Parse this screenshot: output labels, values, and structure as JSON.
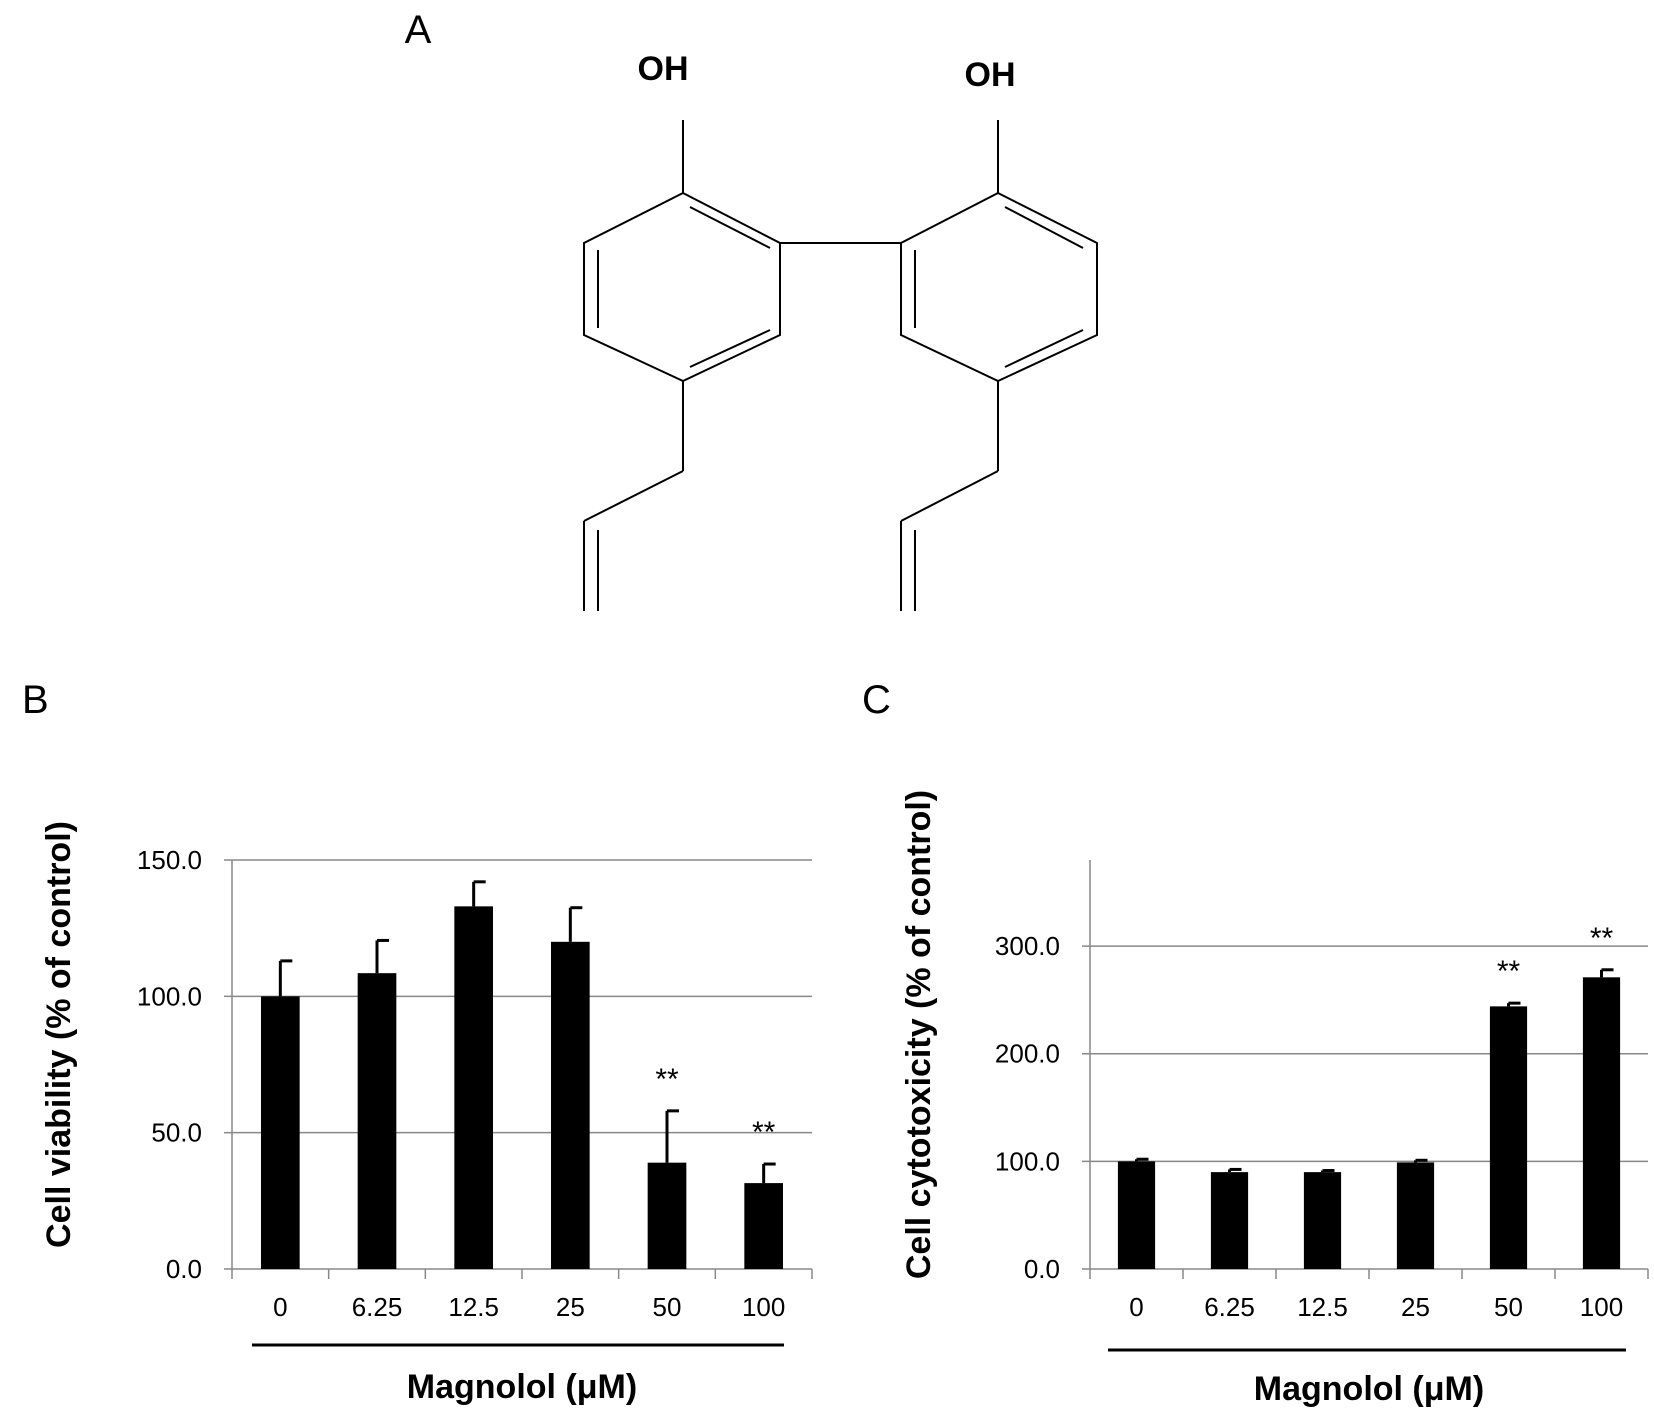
{
  "panels": {
    "a": "A",
    "b": "B",
    "c": "C"
  },
  "structure": {
    "oh_left": "OH",
    "oh_right": "OH"
  },
  "chart_data": [
    {
      "type": "bar",
      "panel": "B",
      "categories": [
        "0",
        "6.25",
        "12.5",
        "25",
        "50",
        "100"
      ],
      "values": [
        100.0,
        108.5,
        133.0,
        120.0,
        39.0,
        31.5
      ],
      "errors": [
        13.0,
        12.0,
        9.0,
        12.5,
        19.0,
        7.0
      ],
      "annotations": [
        "",
        "",
        "",
        "",
        "**",
        "**"
      ],
      "ylabel": "Cell viability (% of control)",
      "xlabel": "Magnolol (μM)",
      "ylim": [
        0,
        150
      ],
      "yticks": [
        "0.0",
        "50.0",
        "100.0",
        "150.0"
      ],
      "ytick_values": [
        0,
        50,
        100,
        150
      ],
      "grid": true,
      "bar_color": "#000000"
    },
    {
      "type": "bar",
      "panel": "C",
      "categories": [
        "0",
        "6.25",
        "12.5",
        "25",
        "50",
        "100"
      ],
      "values": [
        100.0,
        90.0,
        90.0,
        99.0,
        244.0,
        271.0
      ],
      "errors": [
        2.0,
        2.5,
        1.5,
        2.0,
        3.0,
        7.0
      ],
      "annotations": [
        "",
        "",
        "",
        "",
        "**",
        "**"
      ],
      "ylabel": "Cell cytotoxicity (% of control)",
      "xlabel": "Magnolol (μM)",
      "ylim": [
        0,
        380
      ],
      "yticks": [
        "0.0",
        "100.0",
        "200.0",
        "300.0"
      ],
      "ytick_values": [
        0,
        100,
        200,
        300
      ],
      "grid": true,
      "bar_color": "#000000"
    }
  ]
}
